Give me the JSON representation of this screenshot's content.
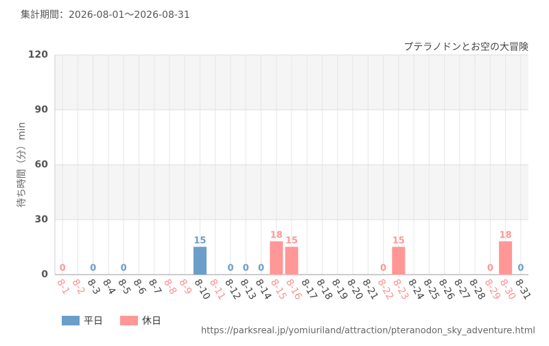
{
  "chart_data": {
    "type": "bar",
    "period": "集計期間：2026-08-01～2026-08-31",
    "title": "プテラノドンとお空の大冒険",
    "y_label": "待ち時間（分）min",
    "source": "https://parksreal.jp/yomiuriland/attraction/pteranodon_sky_adventure.html",
    "categories": [
      "8-1",
      "8-2",
      "8-3",
      "8-4",
      "8-5",
      "8-6",
      "8-7",
      "8-8",
      "8-9",
      "8-10",
      "8-11",
      "8-12",
      "8-13",
      "8-14",
      "8-15",
      "8-16",
      "8-17",
      "8-18",
      "8-19",
      "8-20",
      "8-21",
      "8-22",
      "8-23",
      "8-24",
      "8-25",
      "8-26",
      "8-27",
      "8-28",
      "8-29",
      "8-30",
      "8-31"
    ],
    "category_colors": [
      "#ff8f8f",
      "#ff8f8f",
      "#444444",
      "#444444",
      "#444444",
      "#444444",
      "#444444",
      "#ff8f8f",
      "#ff8f8f",
      "#444444",
      "#ff8f8f",
      "#444444",
      "#444444",
      "#444444",
      "#ff8f8f",
      "#ff8f8f",
      "#444444",
      "#444444",
      "#444444",
      "#444444",
      "#444444",
      "#ff8f8f",
      "#ff8f8f",
      "#444444",
      "#444444",
      "#444444",
      "#444444",
      "#444444",
      "#ff8f8f",
      "#ff8f8f",
      "#444444"
    ],
    "series": [
      {
        "name": "平日",
        "color": "#6b9ec8",
        "values": [
          null,
          null,
          0,
          null,
          0,
          null,
          null,
          null,
          null,
          15,
          null,
          0,
          0,
          0,
          null,
          null,
          null,
          null,
          null,
          null,
          null,
          null,
          null,
          null,
          null,
          null,
          null,
          null,
          null,
          null,
          0
        ]
      },
      {
        "name": "休日",
        "color": "#ff9797",
        "values": [
          0,
          null,
          null,
          null,
          null,
          null,
          null,
          null,
          null,
          null,
          null,
          null,
          null,
          null,
          18,
          15,
          null,
          null,
          null,
          null,
          null,
          0,
          15,
          null,
          null,
          null,
          null,
          null,
          0,
          18,
          null
        ]
      }
    ],
    "ylim": [
      0,
      120
    ],
    "yticks": [
      0,
      30,
      60,
      90,
      120
    ],
    "grid": true
  }
}
